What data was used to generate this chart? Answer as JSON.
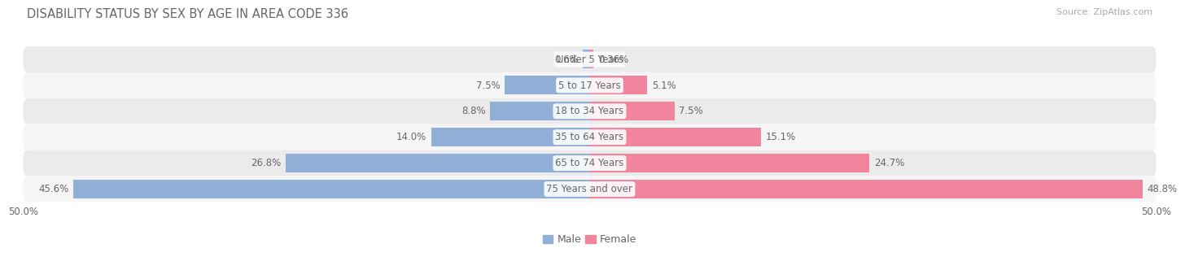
{
  "title": "DISABILITY STATUS BY SEX BY AGE IN AREA CODE 336",
  "source": "Source: ZipAtlas.com",
  "categories": [
    "Under 5 Years",
    "5 to 17 Years",
    "18 to 34 Years",
    "35 to 64 Years",
    "65 to 74 Years",
    "75 Years and over"
  ],
  "male_values": [
    0.6,
    7.5,
    8.8,
    14.0,
    26.8,
    45.6
  ],
  "female_values": [
    0.36,
    5.1,
    7.5,
    15.1,
    24.7,
    48.8
  ],
  "male_color": "#92afd7",
  "female_color": "#f0859d",
  "row_bg_even": "#ebebeb",
  "row_bg_odd": "#f5f5f5",
  "max_val": 50.0,
  "bar_height": 0.72,
  "label_fontsize": 8.5,
  "title_fontsize": 10.5,
  "source_fontsize": 8.0,
  "legend_fontsize": 9,
  "figure_bg": "#ffffff",
  "text_color": "#666666",
  "source_color": "#aaaaaa"
}
